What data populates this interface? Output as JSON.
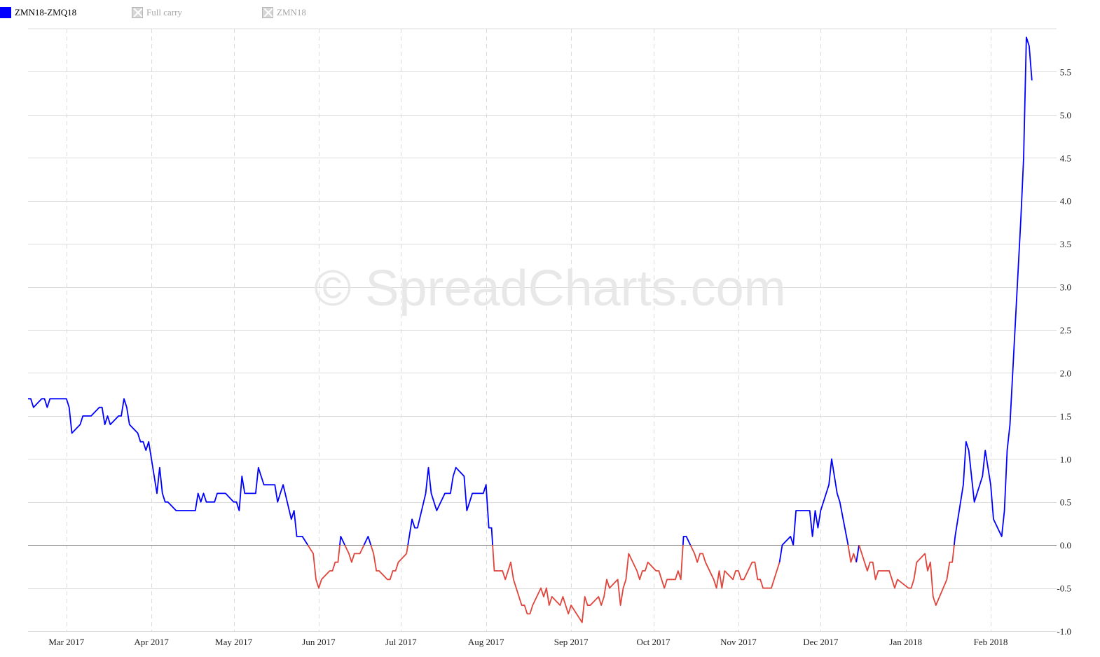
{
  "legend": [
    {
      "label": "ZMN18-ZMQ18",
      "color": "#0000ff",
      "enabled": true
    },
    {
      "label": "Full carry",
      "enabled": false
    },
    {
      "label": "ZMN18",
      "enabled": false
    }
  ],
  "watermark": "© SpreadCharts.com",
  "colors": {
    "positive": "#0000ff",
    "negative": "#e0443a",
    "grid": "#dcdcdc",
    "zero": "#888888"
  },
  "chart_data": {
    "type": "line",
    "title": "",
    "xlabel": "",
    "ylabel": "",
    "x_range": [
      "2017-02-15",
      "2018-02-25"
    ],
    "ylim": [
      -1.0,
      6.0
    ],
    "grid": true,
    "legend_position": "top-left",
    "y_axis_position": "right",
    "yticks": [
      -1.0,
      -0.5,
      0.0,
      0.5,
      1.0,
      1.5,
      2.0,
      2.5,
      3.0,
      3.5,
      4.0,
      4.5,
      5.0,
      5.5
    ],
    "xticks": [
      {
        "date": "2017-03-01",
        "label": "Mar 2017"
      },
      {
        "date": "2017-04-01",
        "label": "Apr 2017"
      },
      {
        "date": "2017-05-01",
        "label": "May 2017"
      },
      {
        "date": "2017-06-01",
        "label": "Jun 2017"
      },
      {
        "date": "2017-07-01",
        "label": "Jul 2017"
      },
      {
        "date": "2017-08-01",
        "label": "Aug 2017"
      },
      {
        "date": "2017-09-01",
        "label": "Sep 2017"
      },
      {
        "date": "2017-10-01",
        "label": "Oct 2017"
      },
      {
        "date": "2017-11-01",
        "label": "Nov 2017"
      },
      {
        "date": "2017-12-01",
        "label": "Dec 2017"
      },
      {
        "date": "2018-01-01",
        "label": "Jan 2018"
      },
      {
        "date": "2018-02-01",
        "label": "Feb 2018"
      }
    ],
    "series": [
      {
        "name": "ZMN18-ZMQ18",
        "color_above_zero": "#0000ff",
        "color_below_zero": "#e0443a",
        "points": [
          [
            "2017-02-15",
            1.7
          ],
          [
            "2017-02-16",
            1.7
          ],
          [
            "2017-02-17",
            1.6
          ],
          [
            "2017-02-20",
            1.7
          ],
          [
            "2017-02-21",
            1.7
          ],
          [
            "2017-02-22",
            1.6
          ],
          [
            "2017-02-23",
            1.7
          ],
          [
            "2017-02-24",
            1.7
          ],
          [
            "2017-02-27",
            1.7
          ],
          [
            "2017-02-28",
            1.7
          ],
          [
            "2017-03-01",
            1.7
          ],
          [
            "2017-03-02",
            1.6
          ],
          [
            "2017-03-03",
            1.3
          ],
          [
            "2017-03-06",
            1.4
          ],
          [
            "2017-03-07",
            1.5
          ],
          [
            "2017-03-08",
            1.5
          ],
          [
            "2017-03-09",
            1.5
          ],
          [
            "2017-03-10",
            1.5
          ],
          [
            "2017-03-13",
            1.6
          ],
          [
            "2017-03-14",
            1.6
          ],
          [
            "2017-03-15",
            1.4
          ],
          [
            "2017-03-16",
            1.5
          ],
          [
            "2017-03-17",
            1.4
          ],
          [
            "2017-03-20",
            1.5
          ],
          [
            "2017-03-21",
            1.5
          ],
          [
            "2017-03-22",
            1.7
          ],
          [
            "2017-03-23",
            1.6
          ],
          [
            "2017-03-24",
            1.4
          ],
          [
            "2017-03-27",
            1.3
          ],
          [
            "2017-03-28",
            1.2
          ],
          [
            "2017-03-29",
            1.2
          ],
          [
            "2017-03-30",
            1.1
          ],
          [
            "2017-03-31",
            1.2
          ],
          [
            "2017-04-03",
            0.6
          ],
          [
            "2017-04-04",
            0.9
          ],
          [
            "2017-04-05",
            0.6
          ],
          [
            "2017-04-06",
            0.5
          ],
          [
            "2017-04-07",
            0.5
          ],
          [
            "2017-04-10",
            0.4
          ],
          [
            "2017-04-11",
            0.4
          ],
          [
            "2017-04-12",
            0.4
          ],
          [
            "2017-04-13",
            0.4
          ],
          [
            "2017-04-17",
            0.4
          ],
          [
            "2017-04-18",
            0.6
          ],
          [
            "2017-04-19",
            0.5
          ],
          [
            "2017-04-20",
            0.6
          ],
          [
            "2017-04-21",
            0.5
          ],
          [
            "2017-04-24",
            0.5
          ],
          [
            "2017-04-25",
            0.6
          ],
          [
            "2017-04-26",
            0.6
          ],
          [
            "2017-04-27",
            0.6
          ],
          [
            "2017-04-28",
            0.6
          ],
          [
            "2017-05-01",
            0.5
          ],
          [
            "2017-05-02",
            0.5
          ],
          [
            "2017-05-03",
            0.4
          ],
          [
            "2017-05-04",
            0.8
          ],
          [
            "2017-05-05",
            0.6
          ],
          [
            "2017-05-08",
            0.6
          ],
          [
            "2017-05-09",
            0.6
          ],
          [
            "2017-05-10",
            0.9
          ],
          [
            "2017-05-11",
            0.8
          ],
          [
            "2017-05-12",
            0.7
          ],
          [
            "2017-05-15",
            0.7
          ],
          [
            "2017-05-16",
            0.7
          ],
          [
            "2017-05-17",
            0.5
          ],
          [
            "2017-05-18",
            0.6
          ],
          [
            "2017-05-19",
            0.7
          ],
          [
            "2017-05-22",
            0.3
          ],
          [
            "2017-05-23",
            0.4
          ],
          [
            "2017-05-24",
            0.1
          ],
          [
            "2017-05-25",
            0.1
          ],
          [
            "2017-05-26",
            0.1
          ],
          [
            "2017-05-30",
            -0.1
          ],
          [
            "2017-05-31",
            -0.4
          ],
          [
            "2017-06-01",
            -0.5
          ],
          [
            "2017-06-02",
            -0.4
          ],
          [
            "2017-06-05",
            -0.3
          ],
          [
            "2017-06-06",
            -0.3
          ],
          [
            "2017-06-07",
            -0.2
          ],
          [
            "2017-06-08",
            -0.2
          ],
          [
            "2017-06-09",
            0.1
          ],
          [
            "2017-06-12",
            -0.1
          ],
          [
            "2017-06-13",
            -0.2
          ],
          [
            "2017-06-14",
            -0.1
          ],
          [
            "2017-06-15",
            -0.1
          ],
          [
            "2017-06-16",
            -0.1
          ],
          [
            "2017-06-19",
            0.1
          ],
          [
            "2017-06-20",
            0.0
          ],
          [
            "2017-06-21",
            -0.1
          ],
          [
            "2017-06-22",
            -0.3
          ],
          [
            "2017-06-23",
            -0.3
          ],
          [
            "2017-06-26",
            -0.4
          ],
          [
            "2017-06-27",
            -0.4
          ],
          [
            "2017-06-28",
            -0.3
          ],
          [
            "2017-06-29",
            -0.3
          ],
          [
            "2017-06-30",
            -0.2
          ],
          [
            "2017-07-03",
            -0.1
          ],
          [
            "2017-07-05",
            0.3
          ],
          [
            "2017-07-06",
            0.2
          ],
          [
            "2017-07-07",
            0.2
          ],
          [
            "2017-07-10",
            0.6
          ],
          [
            "2017-07-11",
            0.9
          ],
          [
            "2017-07-12",
            0.6
          ],
          [
            "2017-07-13",
            0.5
          ],
          [
            "2017-07-14",
            0.4
          ],
          [
            "2017-07-17",
            0.6
          ],
          [
            "2017-07-18",
            0.6
          ],
          [
            "2017-07-19",
            0.6
          ],
          [
            "2017-07-20",
            0.8
          ],
          [
            "2017-07-21",
            0.9
          ],
          [
            "2017-07-24",
            0.8
          ],
          [
            "2017-07-25",
            0.4
          ],
          [
            "2017-07-26",
            0.5
          ],
          [
            "2017-07-27",
            0.6
          ],
          [
            "2017-07-28",
            0.6
          ],
          [
            "2017-07-31",
            0.6
          ],
          [
            "2017-08-01",
            0.7
          ],
          [
            "2017-08-02",
            0.2
          ],
          [
            "2017-08-03",
            0.2
          ],
          [
            "2017-08-04",
            -0.3
          ],
          [
            "2017-08-07",
            -0.3
          ],
          [
            "2017-08-08",
            -0.4
          ],
          [
            "2017-08-09",
            -0.3
          ],
          [
            "2017-08-10",
            -0.2
          ],
          [
            "2017-08-11",
            -0.4
          ],
          [
            "2017-08-14",
            -0.7
          ],
          [
            "2017-08-15",
            -0.7
          ],
          [
            "2017-08-16",
            -0.8
          ],
          [
            "2017-08-17",
            -0.8
          ],
          [
            "2017-08-18",
            -0.7
          ],
          [
            "2017-08-21",
            -0.5
          ],
          [
            "2017-08-22",
            -0.6
          ],
          [
            "2017-08-23",
            -0.5
          ],
          [
            "2017-08-24",
            -0.7
          ],
          [
            "2017-08-25",
            -0.6
          ],
          [
            "2017-08-28",
            -0.7
          ],
          [
            "2017-08-29",
            -0.6
          ],
          [
            "2017-08-30",
            -0.7
          ],
          [
            "2017-08-31",
            -0.8
          ],
          [
            "2017-09-01",
            -0.7
          ],
          [
            "2017-09-05",
            -0.9
          ],
          [
            "2017-09-06",
            -0.6
          ],
          [
            "2017-09-07",
            -0.7
          ],
          [
            "2017-09-08",
            -0.7
          ],
          [
            "2017-09-11",
            -0.6
          ],
          [
            "2017-09-12",
            -0.7
          ],
          [
            "2017-09-13",
            -0.6
          ],
          [
            "2017-09-14",
            -0.4
          ],
          [
            "2017-09-15",
            -0.5
          ],
          [
            "2017-09-18",
            -0.4
          ],
          [
            "2017-09-19",
            -0.7
          ],
          [
            "2017-09-20",
            -0.5
          ],
          [
            "2017-09-21",
            -0.4
          ],
          [
            "2017-09-22",
            -0.1
          ],
          [
            "2017-09-25",
            -0.3
          ],
          [
            "2017-09-26",
            -0.4
          ],
          [
            "2017-09-27",
            -0.3
          ],
          [
            "2017-09-28",
            -0.3
          ],
          [
            "2017-09-29",
            -0.2
          ],
          [
            "2017-10-02",
            -0.3
          ],
          [
            "2017-10-03",
            -0.3
          ],
          [
            "2017-10-04",
            -0.4
          ],
          [
            "2017-10-05",
            -0.5
          ],
          [
            "2017-10-06",
            -0.4
          ],
          [
            "2017-10-09",
            -0.4
          ],
          [
            "2017-10-10",
            -0.3
          ],
          [
            "2017-10-11",
            -0.4
          ],
          [
            "2017-10-12",
            0.1
          ],
          [
            "2017-10-13",
            0.1
          ],
          [
            "2017-10-16",
            -0.1
          ],
          [
            "2017-10-17",
            -0.2
          ],
          [
            "2017-10-18",
            -0.1
          ],
          [
            "2017-10-19",
            -0.1
          ],
          [
            "2017-10-20",
            -0.2
          ],
          [
            "2017-10-23",
            -0.4
          ],
          [
            "2017-10-24",
            -0.5
          ],
          [
            "2017-10-25",
            -0.3
          ],
          [
            "2017-10-26",
            -0.5
          ],
          [
            "2017-10-27",
            -0.3
          ],
          [
            "2017-10-30",
            -0.4
          ],
          [
            "2017-10-31",
            -0.3
          ],
          [
            "2017-11-01",
            -0.3
          ],
          [
            "2017-11-02",
            -0.4
          ],
          [
            "2017-11-03",
            -0.4
          ],
          [
            "2017-11-06",
            -0.2
          ],
          [
            "2017-11-07",
            -0.2
          ],
          [
            "2017-11-08",
            -0.4
          ],
          [
            "2017-11-09",
            -0.4
          ],
          [
            "2017-11-10",
            -0.5
          ],
          [
            "2017-11-13",
            -0.5
          ],
          [
            "2017-11-14",
            -0.4
          ],
          [
            "2017-11-15",
            -0.3
          ],
          [
            "2017-11-16",
            -0.2
          ],
          [
            "2017-11-17",
            0.0
          ],
          [
            "2017-11-20",
            0.1
          ],
          [
            "2017-11-21",
            0.0
          ],
          [
            "2017-11-22",
            0.4
          ],
          [
            "2017-11-24",
            0.4
          ],
          [
            "2017-11-27",
            0.4
          ],
          [
            "2017-11-28",
            0.1
          ],
          [
            "2017-11-29",
            0.4
          ],
          [
            "2017-11-30",
            0.2
          ],
          [
            "2017-12-01",
            0.4
          ],
          [
            "2017-12-04",
            0.7
          ],
          [
            "2017-12-05",
            1.0
          ],
          [
            "2017-12-06",
            0.8
          ],
          [
            "2017-12-07",
            0.6
          ],
          [
            "2017-12-08",
            0.5
          ],
          [
            "2017-12-11",
            0.0
          ],
          [
            "2017-12-12",
            -0.2
          ],
          [
            "2017-12-13",
            -0.1
          ],
          [
            "2017-12-14",
            -0.2
          ],
          [
            "2017-12-15",
            0.0
          ],
          [
            "2017-12-18",
            -0.3
          ],
          [
            "2017-12-19",
            -0.2
          ],
          [
            "2017-12-20",
            -0.2
          ],
          [
            "2017-12-21",
            -0.4
          ],
          [
            "2017-12-22",
            -0.3
          ],
          [
            "2017-12-26",
            -0.3
          ],
          [
            "2017-12-27",
            -0.4
          ],
          [
            "2017-12-28",
            -0.5
          ],
          [
            "2017-12-29",
            -0.4
          ],
          [
            "2018-01-02",
            -0.5
          ],
          [
            "2018-01-03",
            -0.5
          ],
          [
            "2018-01-04",
            -0.4
          ],
          [
            "2018-01-05",
            -0.2
          ],
          [
            "2018-01-08",
            -0.1
          ],
          [
            "2018-01-09",
            -0.3
          ],
          [
            "2018-01-10",
            -0.2
          ],
          [
            "2018-01-11",
            -0.6
          ],
          [
            "2018-01-12",
            -0.7
          ],
          [
            "2018-01-16",
            -0.4
          ],
          [
            "2018-01-17",
            -0.2
          ],
          [
            "2018-01-18",
            -0.2
          ],
          [
            "2018-01-19",
            0.1
          ],
          [
            "2018-01-22",
            0.7
          ],
          [
            "2018-01-23",
            1.2
          ],
          [
            "2018-01-24",
            1.1
          ],
          [
            "2018-01-25",
            0.8
          ],
          [
            "2018-01-26",
            0.5
          ],
          [
            "2018-01-29",
            0.8
          ],
          [
            "2018-01-30",
            1.1
          ],
          [
            "2018-01-31",
            0.9
          ],
          [
            "2018-02-01",
            0.7
          ],
          [
            "2018-02-02",
            0.3
          ],
          [
            "2018-02-05",
            0.1
          ],
          [
            "2018-02-06",
            0.4
          ],
          [
            "2018-02-07",
            1.1
          ],
          [
            "2018-02-08",
            1.4
          ],
          [
            "2018-02-09",
            2.0
          ],
          [
            "2018-02-12",
            3.8
          ],
          [
            "2018-02-13",
            4.5
          ],
          [
            "2018-02-14",
            5.9
          ],
          [
            "2018-02-15",
            5.8
          ],
          [
            "2018-02-16",
            5.4
          ]
        ]
      }
    ]
  }
}
